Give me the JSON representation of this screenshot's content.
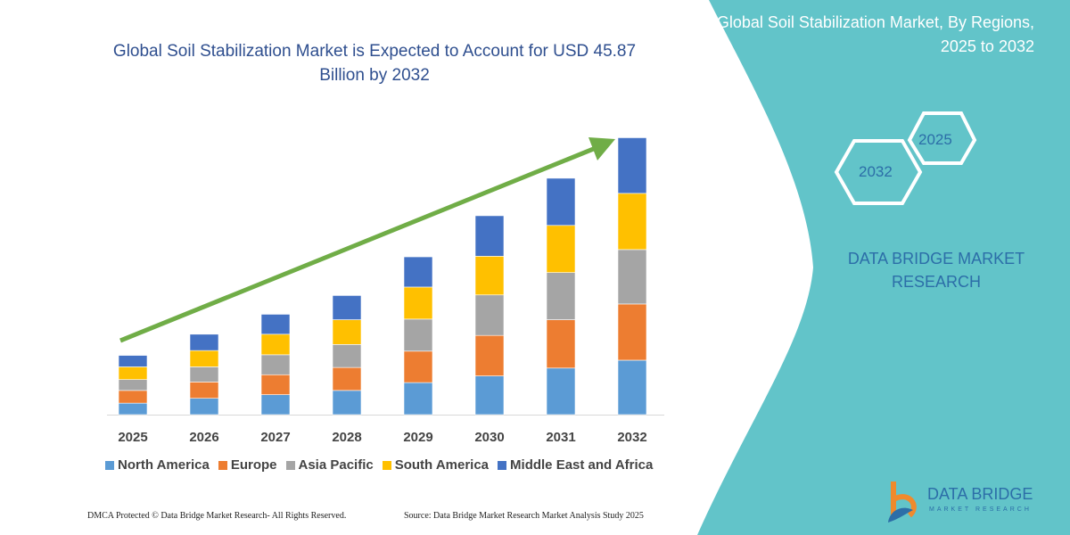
{
  "title": "Global Soil Stabilization Market is Expected to Account for USD 45.87 Billion by 2032",
  "side_panel": {
    "title": "Global Soil Stabilization Market, By Regions, 2025 to 2032",
    "hex_left": "2032",
    "hex_right": "2025",
    "brand": "DATA BRIDGE MARKET RESEARCH",
    "color": "#62c4c9"
  },
  "footer": {
    "copyright": "DMCA Protected © Data Bridge Market Research-  All Rights Reserved.",
    "source": "Source: Data Bridge Market Research  Market Analysis Study 2025"
  },
  "logo": {
    "name": "DATA BRIDGE",
    "sub": "MARKET RESEARCH"
  },
  "chart_data": {
    "type": "bar",
    "stacked": true,
    "title": "Global Soil Stabilization Market is Expected to Account for USD 45.87 Billion by 2032",
    "xlabel": "",
    "ylabel": "",
    "ylim": [
      0,
      46
    ],
    "grid": false,
    "legend": "bottom",
    "trend_arrow": {
      "color": "#70ad47"
    },
    "categories": [
      "2025",
      "2026",
      "2027",
      "2028",
      "2029",
      "2030",
      "2031",
      "2032"
    ],
    "series": [
      {
        "name": "North America",
        "color": "#5b9bd5",
        "values": [
          1.9,
          2.7,
          3.3,
          4.0,
          5.3,
          6.4,
          7.7,
          9.0
        ]
      },
      {
        "name": "Europe",
        "color": "#ed7d31",
        "values": [
          2.1,
          2.7,
          3.3,
          3.8,
          5.2,
          6.7,
          8.0,
          9.3
        ]
      },
      {
        "name": "Asia Pacific",
        "color": "#a5a5a5",
        "values": [
          1.8,
          2.5,
          3.3,
          3.8,
          5.3,
          6.7,
          7.8,
          9.0
        ]
      },
      {
        "name": "South America",
        "color": "#ffc000",
        "values": [
          2.1,
          2.7,
          3.4,
          4.1,
          5.3,
          6.4,
          7.8,
          9.3
        ]
      },
      {
        "name": "Middle East and Africa",
        "color": "#4472c4",
        "values": [
          1.9,
          2.7,
          3.3,
          4.0,
          5.0,
          6.7,
          7.8,
          9.2
        ]
      }
    ]
  }
}
